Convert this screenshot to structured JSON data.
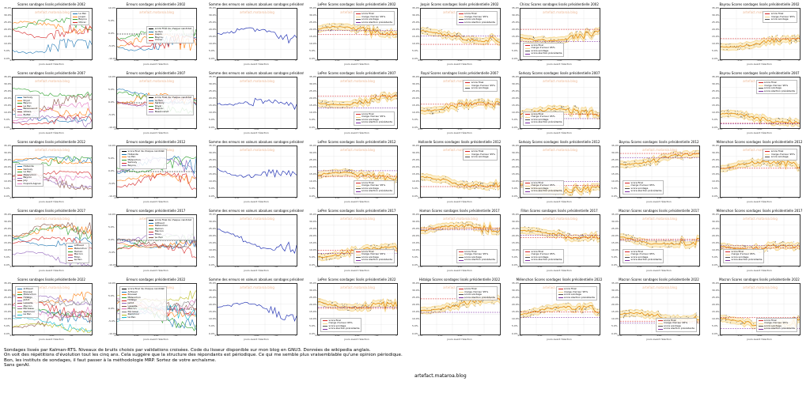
{
  "charts": [
    {
      "title": "Scores sondages lissés présidentielle 2002",
      "kind": "multi",
      "legend": [
        "Le Pen",
        "Jospin",
        "Bayrou",
        "Chirac"
      ],
      "legend_pos": "top-right"
    },
    {
      "title": "Erreurs sondages présidentielle 2002",
      "kind": "err",
      "legend": [
        "score final de chaque candidat",
        "Le Pen",
        "Jospin",
        "Bayrou",
        "Chirac"
      ],
      "legend_pos": "middle-right"
    },
    {
      "title": "Somme des erreurs en valeurs absolues sondages présidentielle 2002",
      "kind": "sum"
    },
    {
      "title": "LePen Scores sondages lissés présidentielle 2002",
      "kind": "cand",
      "legend": [
        "score final",
        "marge d'erreur 95%",
        "score sondage",
        "score élection précédente"
      ],
      "legend_pos": "top-right"
    },
    {
      "title": "Jospin Scores sondages lissés présidentielle 2002",
      "kind": "cand",
      "legend": [
        "score final",
        "marge d'erreur 95%",
        "score sondage",
        "score élection précédente"
      ],
      "legend_pos": "top-right"
    },
    {
      "title": "Chirac Scores sondages lissés présidentielle 2002",
      "kind": "cand",
      "legend": [
        "score final",
        "marge d'erreur 95%",
        "score sondage",
        "score élection précédente"
      ],
      "legend_pos": "bottom-left"
    },
    {
      "title": "Bayrou Scores sondages lissés présidentielle 2002",
      "kind": "cand",
      "legend": [
        "score final",
        "marge d'erreur 95%",
        "score sondage"
      ],
      "legend_pos": "top-right"
    },
    {
      "title": "Scores sondages lissés présidentielle 2007",
      "kind": "multi",
      "legend": [
        "Sarkozy",
        "Royal",
        "Bayrou",
        "Le Pen",
        "Besancenot",
        "Villiers",
        "Buffet"
      ],
      "legend_pos": "middle-left"
    },
    {
      "title": "Erreurs sondages présidentielle 2007",
      "kind": "err",
      "legend": [
        "score final de chaque candidat",
        "Le Pen",
        "Sarkozy",
        "Royal",
        "Bayrou",
        "Besancenot"
      ],
      "legend_pos": "middle-right"
    },
    {
      "title": "Somme des erreurs en valeurs absolues sondages présidentielle 2007",
      "kind": "sum"
    },
    {
      "title": "LePen Scores sondages lissés présidentielle 2007",
      "kind": "cand",
      "legend": [
        "score final",
        "marge d'erreur 95%",
        "score sondage",
        "score élection précédente"
      ],
      "legend_pos": "bottom-right"
    },
    {
      "title": "Royal Scores sondages lissés présidentielle 2007",
      "kind": "cand",
      "legend": [
        "score final",
        "marge d'erreur 95%",
        "score sondage"
      ],
      "legend_pos": "top-right"
    },
    {
      "title": "Sarkozy Scores sondages lissés présidentielle 2007",
      "kind": "cand",
      "legend": [
        "score final",
        "marge d'erreur 95%",
        "score sondage",
        "score élection précédente"
      ],
      "legend_pos": "bottom-left"
    },
    {
      "title": "Bayrou Scores sondages lissés présidentielle 2007",
      "kind": "cand",
      "legend": [
        "score final",
        "marge d'erreur 95%",
        "score sondage",
        "score élection précédente"
      ],
      "legend_pos": "top-right"
    },
    {
      "title": "Scores sondages lissés présidentielle 2012",
      "kind": "multi",
      "legend": [
        "Hollande",
        "Sarkozy",
        "Le Pen",
        "Mélenchon",
        "Bayrou",
        "Joly",
        "Dupont-Aignan"
      ],
      "legend_pos": "middle-left"
    },
    {
      "title": "Erreurs sondages présidentielle 2012",
      "kind": "err",
      "legend": [
        "score final de chaque candidat",
        "Hollande",
        "Le Pen",
        "Mélenchon",
        "Sarkozy",
        "Bayrou"
      ],
      "legend_pos": "top-left"
    },
    {
      "title": "Somme des erreurs en valeurs absolues sondages présidentielle 2012",
      "kind": "sum"
    },
    {
      "title": "LePen Scores sondages lissés présidentielle 2012",
      "kind": "cand",
      "legend": [
        "score final",
        "marge d'erreur 95%",
        "score sondage",
        "score élection précédente"
      ],
      "legend_pos": "bottom-right"
    },
    {
      "title": "Hollande Scores sondages lissés présidentielle 2012",
      "kind": "cand",
      "legend": [
        "score final",
        "marge d'erreur 95%",
        "score sondage"
      ],
      "legend_pos": "top-right"
    },
    {
      "title": "Sarkozy Scores sondages lissés présidentielle 2012",
      "kind": "cand",
      "legend": [
        "score final",
        "marge d'erreur 95%",
        "score sondage",
        "score élection précédente"
      ],
      "legend_pos": "bottom-left"
    },
    {
      "title": "Bayrou Scores sondages lissés présidentielle 2012",
      "kind": "cand",
      "legend": [
        "score final",
        "marge d'erreur 95%",
        "score sondage",
        "score élection précédente"
      ],
      "legend_pos": "bottom-left"
    },
    {
      "title": "Mélenchon Scores sondages lissés présidentielle 2012",
      "kind": "cand",
      "legend": [
        "score final",
        "marge d'erreur 95%",
        "score sondage"
      ],
      "legend_pos": "top-right"
    },
    {
      "title": "Scores sondages lissés présidentielle 2017",
      "kind": "multi",
      "legend": [
        "Arthaud",
        "Mélenchon",
        "Hamon",
        "Macron",
        "Fillon",
        "Le Pen"
      ],
      "legend_pos": "bottom-right"
    },
    {
      "title": "Erreurs sondages présidentielle 2017",
      "kind": "err",
      "legend": [
        "score final de chaque candidat",
        "Arthaud",
        "Mélenchon",
        "Hamon",
        "Macron",
        "Fillon",
        "Le Pen"
      ],
      "legend_pos": "top-right"
    },
    {
      "title": "Somme des erreurs en valeurs absolues sondages présidentielle 2017",
      "kind": "sum"
    },
    {
      "title": "LePen Scores sondages lissés présidentielle 2017",
      "kind": "cand",
      "legend": [
        "score final",
        "marge d'erreur 95%",
        "score sondage",
        "score élection précédente"
      ],
      "legend_pos": "bottom-right"
    },
    {
      "title": "Hamon Scores sondages lissés présidentielle 2017",
      "kind": "cand",
      "legend": [
        "score final",
        "marge d'erreur 95%",
        "score sondage",
        "score élection précédente"
      ],
      "legend_pos": "bottom-right"
    },
    {
      "title": "Fillon Scores sondages lissés présidentielle 2017",
      "kind": "cand",
      "legend": [
        "score final",
        "marge d'erreur 95%",
        "score sondage",
        "score élection précédente"
      ],
      "legend_pos": "bottom-left"
    },
    {
      "title": "Macron Scores sondages lissés présidentielle 2017",
      "kind": "cand",
      "legend": [
        "score final",
        "marge d'erreur 95%",
        "score sondage",
        "score élection précédente"
      ],
      "legend_pos": "bottom-left"
    },
    {
      "title": "Mélenchon Scores sondages lissés présidentielle 2017",
      "kind": "cand",
      "legend": [
        "score final",
        "marge d'erreur 95%",
        "score sondage",
        "score élection précédente"
      ],
      "legend_pos": "bottom-left"
    },
    {
      "title": "Scores sondages lissés présidentielle 2022",
      "kind": "multi",
      "legend": [
        "Arthaud",
        "Roussel",
        "Mélenchon",
        "Hidalgo",
        "Jadot",
        "Lassalle",
        "Macron",
        "Pécresse",
        "Zemmour",
        "Le Pen"
      ],
      "legend_pos": "top-left"
    },
    {
      "title": "Erreurs sondages présidentielle 2022",
      "kind": "err",
      "legend": [
        "score final de chaque candidat",
        "Arthaud",
        "Roussel",
        "Mélenchon",
        "Hidalgo",
        "Jadot",
        "Lassalle",
        "Macron",
        "Pécresse",
        "Zemmour",
        "Le Pen"
      ],
      "legend_pos": "top-left"
    },
    {
      "title": "Somme des erreurs en valeurs absolues sondages présidentielle 2022",
      "kind": "sum"
    },
    {
      "title": "LePen Scores sondages lissés présidentielle 2022",
      "kind": "cand",
      "legend": [
        "score final",
        "marge d'erreur 95%",
        "score sondage",
        "score élection précédente"
      ],
      "legend_pos": "bottom-left"
    },
    {
      "title": "Hidalgo Scores sondages lissés présidentielle 2022",
      "kind": "cand",
      "legend": [
        "score final",
        "marge d'erreur 95%",
        "score sondage",
        "score élection précédente"
      ],
      "legend_pos": "top-right"
    },
    {
      "title": "Mélenchon Scores sondages lissés présidentielle 2022",
      "kind": "cand",
      "legend": [
        "score final",
        "marge d'erreur 95%",
        "score sondage",
        "score élection précédente"
      ],
      "legend_pos": "top-right"
    },
    {
      "title": "Macron Scores sondages lissés présidentielle 2022",
      "kind": "cand",
      "legend": [
        "score final",
        "marge d'erreur 95%",
        "score sondage",
        "score élection précédente"
      ],
      "legend_pos": "bottom-right"
    },
    {
      "title": "Macron Scores sondages lissés présidentielle 2022",
      "kind": "cand",
      "legend": [
        "score final",
        "marge d'erreur 95%",
        "score sondage",
        "score élection précédente"
      ],
      "legend_pos": "bottom-right"
    }
  ],
  "axis": {
    "xlabel": "jours avant l'élection",
    "xticks": [
      "-200",
      "-150",
      "-100",
      "-50",
      "0"
    ],
    "yticks_pct": [
      "35.0%",
      "30.0%",
      "25.0%",
      "20.0%",
      "15.0%",
      "10.0%",
      "5.0%",
      "0.0%"
    ],
    "yticks_err": [
      "10.0%",
      "5.0%",
      "0.0%",
      "-5.0%",
      "-10.0%"
    ],
    "ylabel_err": "% erreur sondage - score final"
  },
  "watermark": "artefact.mataroa.blog",
  "colors": {
    "band": "#f5d58a",
    "fill": "#fbeecb",
    "line": "#e48a00",
    "final": "#d62728",
    "prev": "#7f2fa5",
    "points": "#555555",
    "sum": "#2636b5",
    "zero": "#000000"
  },
  "palette": [
    "#1f77b4",
    "#ff7f0e",
    "#2ca02c",
    "#d62728",
    "#9467bd",
    "#8c564b",
    "#e377c2",
    "#7f7f7f",
    "#bcbd22",
    "#17becf"
  ],
  "caption": [
    "Sondages lissés par Kalman-RTS. Niveaux de bruits choisis par validations croisées. Code du lisseur disponible sur mon blog en GNU3. Données de wikipedia anglais.",
    "On voit des répétitions d'évolution tout les cinq ans. Cela suggère que la structure des répondants est périodique. Ce qui me semble plus vraisemblable qu'une opinion périodique.",
    "Bon, les instituts de sondages, il faut passer à la méthodologie MRP. Sortez de votre archaïsme.",
    "Sans genAI."
  ],
  "site": "artefact.mataroa.blog"
}
